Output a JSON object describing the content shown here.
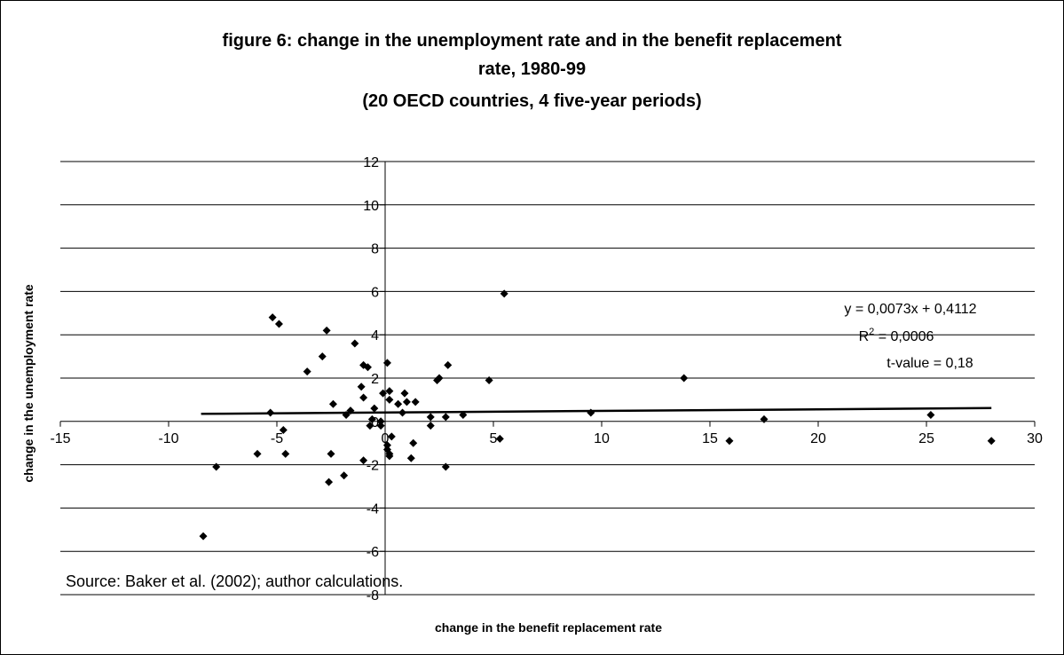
{
  "title_lines": [
    "figure 6: change in the unemployment rate and in the benefit replacement",
    "rate, 1980-99",
    "(20 OECD countries, 4 five-year periods)"
  ],
  "source_note": "Source: Baker et al. (2002); author calculations.",
  "annotations": {
    "equation": "y = 0,0073x + 0,4112",
    "r2_prefix": "R",
    "r2_sup": "2",
    "r2_suffix": " = 0,0006",
    "tvalue": "t-value = 0,18"
  },
  "chart_data": {
    "type": "scatter",
    "title": "figure 6: change in the unemployment rate and in the benefit replacement rate, 1980-99 (20 OECD countries, 4 five-year periods)",
    "xlabel": "change in the benefit replacement rate",
    "ylabel": "change in the unemployment rate",
    "xlim": [
      -15,
      30
    ],
    "ylim": [
      -8,
      12
    ],
    "x_ticks": [
      -15,
      -10,
      -5,
      0,
      5,
      10,
      15,
      20,
      25,
      30
    ],
    "y_ticks": [
      -8,
      -6,
      -4,
      -2,
      0,
      2,
      4,
      6,
      8,
      10,
      12
    ],
    "grid": "horizontal",
    "marker": "diamond",
    "trendline": {
      "slope": 0.0073,
      "intercept": 0.4112,
      "x_range": [
        -8.5,
        28
      ]
    },
    "points": [
      [
        -5.2,
        4.8
      ],
      [
        -4.9,
        4.5
      ],
      [
        -2.7,
        4.2
      ],
      [
        -1.4,
        3.6
      ],
      [
        -2.9,
        3.0
      ],
      [
        -3.6,
        2.3
      ],
      [
        -1.0,
        2.6
      ],
      [
        -0.8,
        2.5
      ],
      [
        0.1,
        2.7
      ],
      [
        -1.1,
        1.6
      ],
      [
        -1.0,
        1.1
      ],
      [
        -0.5,
        0.6
      ],
      [
        -0.1,
        1.3
      ],
      [
        0.2,
        1.4
      ],
      [
        0.2,
        1.0
      ],
      [
        0.6,
        0.8
      ],
      [
        0.9,
        1.3
      ],
      [
        1.0,
        0.9
      ],
      [
        1.4,
        0.9
      ],
      [
        -2.4,
        0.8
      ],
      [
        -1.6,
        0.5
      ],
      [
        -1.8,
        0.3
      ],
      [
        -5.3,
        0.4
      ],
      [
        -0.6,
        0.1
      ],
      [
        -0.7,
        -0.2
      ],
      [
        0.8,
        0.4
      ],
      [
        -0.2,
        -0.2
      ],
      [
        -0.2,
        0.0
      ],
      [
        -4.7,
        -0.4
      ],
      [
        -4.6,
        -1.5
      ],
      [
        -7.8,
        -2.1
      ],
      [
        -5.9,
        -1.5
      ],
      [
        -2.5,
        -1.5
      ],
      [
        -2.6,
        -2.8
      ],
      [
        -1.9,
        -2.5
      ],
      [
        -1.0,
        -1.8
      ],
      [
        0.1,
        -1.1
      ],
      [
        0.1,
        -1.3
      ],
      [
        0.2,
        -1.5
      ],
      [
        0.2,
        -1.6
      ],
      [
        0.3,
        -0.7
      ],
      [
        1.3,
        -1.0
      ],
      [
        1.2,
        -1.7
      ],
      [
        2.1,
        -0.2
      ],
      [
        2.1,
        0.2
      ],
      [
        2.4,
        1.9
      ],
      [
        2.5,
        2.0
      ],
      [
        2.9,
        2.6
      ],
      [
        2.8,
        0.2
      ],
      [
        2.8,
        -2.1
      ],
      [
        3.6,
        0.3
      ],
      [
        4.8,
        1.9
      ],
      [
        5.3,
        -0.8
      ],
      [
        5.5,
        5.9
      ],
      [
        9.5,
        0.4
      ],
      [
        13.8,
        2.0
      ],
      [
        15.9,
        -0.9
      ],
      [
        17.5,
        0.1
      ],
      [
        25.2,
        0.3
      ],
      [
        28.0,
        -0.9
      ],
      [
        -8.4,
        -5.3
      ]
    ]
  }
}
